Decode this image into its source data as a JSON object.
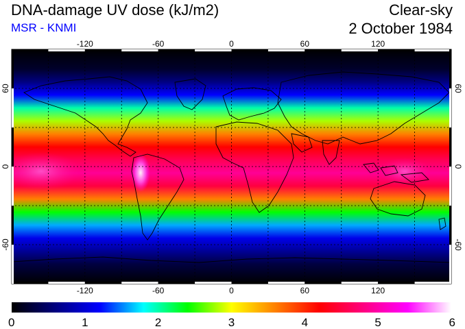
{
  "header": {
    "title": "DNA-damage UV dose (kJ/m2)",
    "subtitle": "MSR - KNMI",
    "condition": "Clear-sky",
    "date": "2 October 1984"
  },
  "map": {
    "projection": "equirectangular",
    "lon_range": [
      -180,
      180
    ],
    "lat_range": [
      -90,
      90
    ],
    "lon_ticks": [
      -120,
      -60,
      0,
      60,
      120
    ],
    "lat_ticks": [
      60,
      0,
      -60
    ],
    "lon_tick_labels": [
      "-120",
      "-60",
      "0",
      "60",
      "120"
    ],
    "lat_tick_labels": [
      "60",
      "0",
      "-60"
    ],
    "grid": "dotted every 30 degrees",
    "background_color": "#000000",
    "coastline_color": "#000000"
  },
  "colorbar": {
    "min": 0,
    "max": 6,
    "tick_labels": [
      "0",
      "1",
      "2",
      "3",
      "4",
      "5",
      "6"
    ],
    "colors": [
      "#000000",
      "#000080",
      "#0000ff",
      "#00ffff",
      "#00ff00",
      "#ffff00",
      "#ff8000",
      "#ff0000",
      "#ff0080",
      "#ff00ff",
      "#ffffff"
    ]
  },
  "field": {
    "description_bands": [
      {
        "lat": 90,
        "value": 0.0
      },
      {
        "lat": 75,
        "value": 0.2
      },
      {
        "lat": 65,
        "value": 0.6
      },
      {
        "lat": 55,
        "value": 1.2
      },
      {
        "lat": 45,
        "value": 2.0
      },
      {
        "lat": 35,
        "value": 2.8
      },
      {
        "lat": 25,
        "value": 3.6
      },
      {
        "lat": 15,
        "value": 4.2
      },
      {
        "lat": 5,
        "value": 4.6
      },
      {
        "lat": -5,
        "value": 4.9
      },
      {
        "lat": -15,
        "value": 4.5
      },
      {
        "lat": -25,
        "value": 3.6
      },
      {
        "lat": -35,
        "value": 2.4
      },
      {
        "lat": -45,
        "value": 1.6
      },
      {
        "lat": -55,
        "value": 1.1
      },
      {
        "lat": -65,
        "value": 0.7
      },
      {
        "lat": -75,
        "value": 0.3
      },
      {
        "lat": -90,
        "value": 0.0
      }
    ]
  }
}
